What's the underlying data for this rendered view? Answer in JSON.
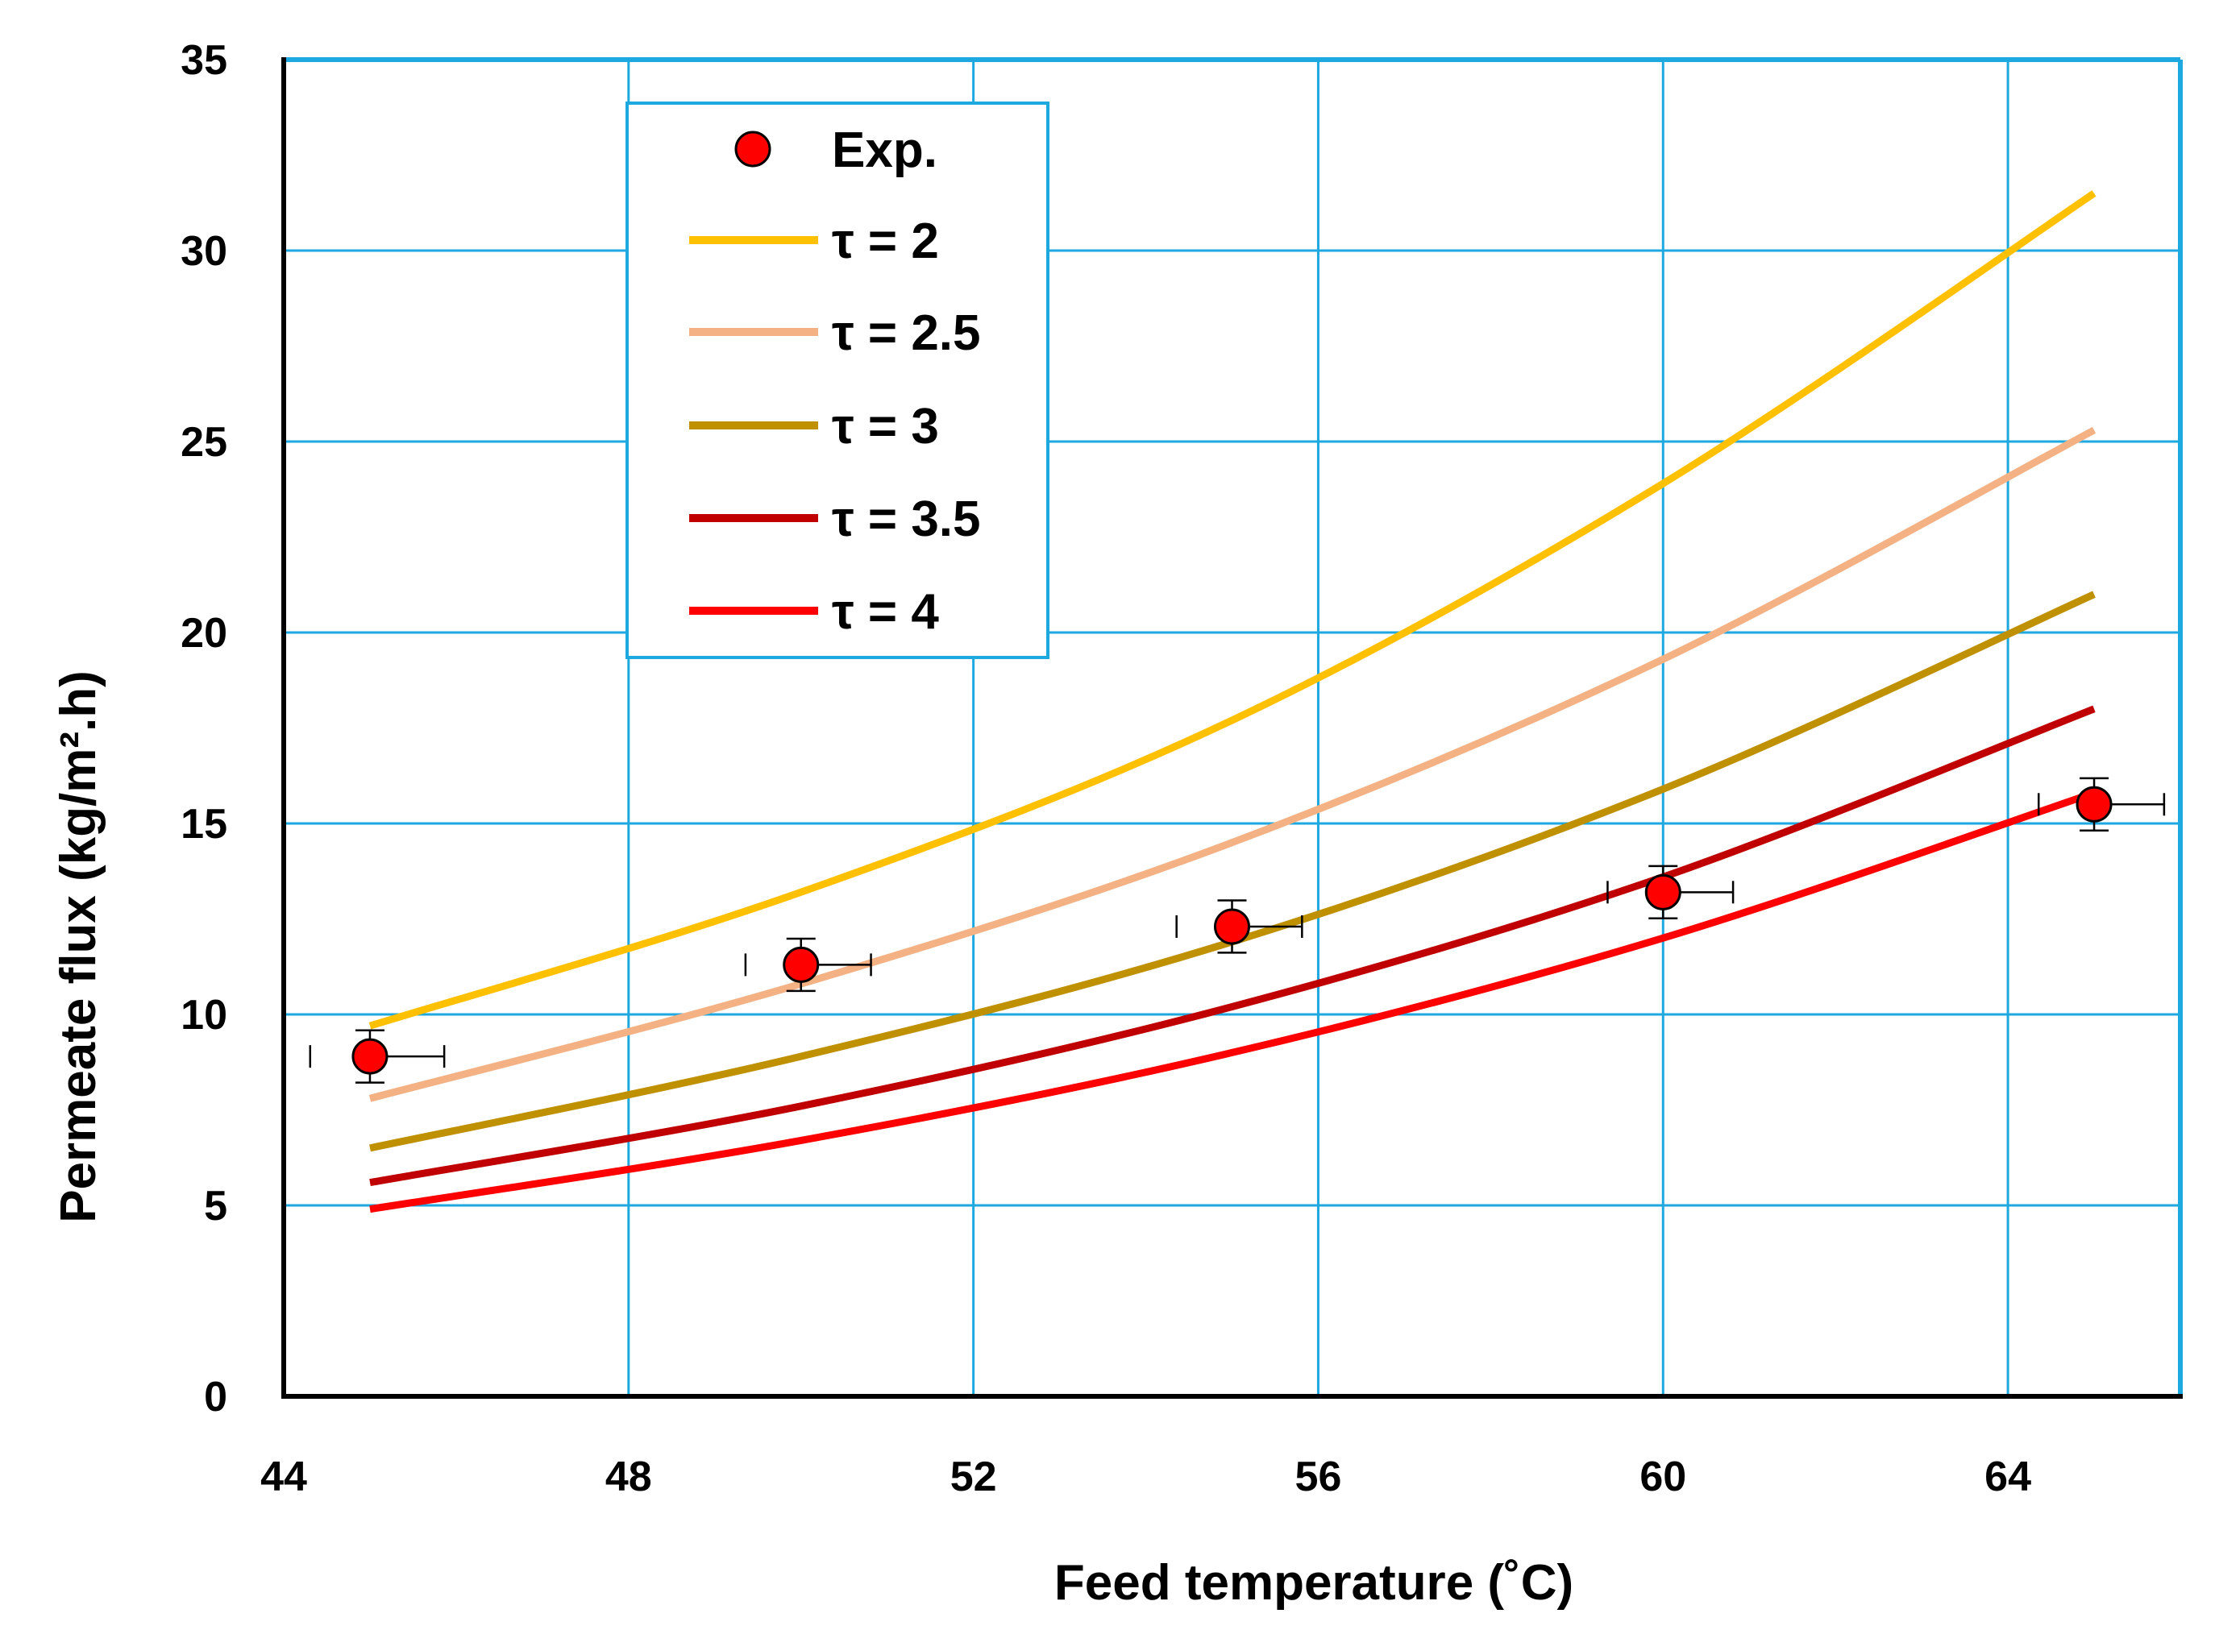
{
  "chart_data": {
    "type": "line",
    "title": "",
    "xlabel": "Feed temperature (˚C)",
    "ylabel": "Permeate flux (kg/m².h)",
    "xlim": [
      44,
      66
    ],
    "ylim": [
      0,
      35
    ],
    "x_ticks": [
      44,
      48,
      52,
      56,
      60,
      64
    ],
    "y_ticks": [
      0,
      5,
      10,
      15,
      20,
      25,
      30,
      35
    ],
    "x_tick_labels": [
      "44",
      "48",
      "52",
      "56",
      "60",
      "64"
    ],
    "y_tick_labels": [
      "0",
      "5",
      "10",
      "15",
      "20",
      "25",
      "30",
      "35"
    ],
    "grid": true,
    "legend_position": "top-left",
    "colors": {
      "grid": "#1EA8E0",
      "frame": "#1EA8E0",
      "axis": "#000000",
      "marker": "#FF0000",
      "legend_border": "#1EA8E0"
    },
    "experimental": {
      "name": "Exp.",
      "color": "#FF0000",
      "x": [
        45,
        50,
        55,
        60,
        65
      ],
      "y": [
        8.9,
        11.3,
        12.3,
        13.2,
        15.5
      ],
      "x_err": [
        0.6,
        0.55,
        0.55,
        0.55,
        0.55
      ],
      "y_err": [
        0.6,
        0.6,
        0.6,
        0.6,
        0.6
      ]
    },
    "series": [
      {
        "name": "τ = 2",
        "color": "#FFC000",
        "x": [
          45,
          50,
          55,
          60,
          65
        ],
        "y": [
          9.7,
          13.2,
          17.7,
          23.9,
          31.5
        ]
      },
      {
        "name": "τ = 2.5",
        "color": "#F4B183",
        "x": [
          45,
          50,
          55,
          60,
          65
        ],
        "y": [
          7.8,
          10.8,
          14.5,
          19.3,
          25.3
        ]
      },
      {
        "name": "τ = 3",
        "color": "#BF9000",
        "x": [
          45,
          50,
          55,
          60,
          65
        ],
        "y": [
          6.5,
          8.9,
          11.9,
          15.9,
          21.0
        ]
      },
      {
        "name": "τ = 3.5",
        "color": "#C00000",
        "x": [
          45,
          50,
          55,
          60,
          65
        ],
        "y": [
          5.6,
          7.6,
          10.2,
          13.6,
          18.0
        ]
      },
      {
        "name": "τ = 4",
        "color": "#FF0000",
        "x": [
          45,
          50,
          55,
          60,
          65
        ],
        "y": [
          4.9,
          6.7,
          9.0,
          12.0,
          15.8
        ]
      }
    ]
  }
}
